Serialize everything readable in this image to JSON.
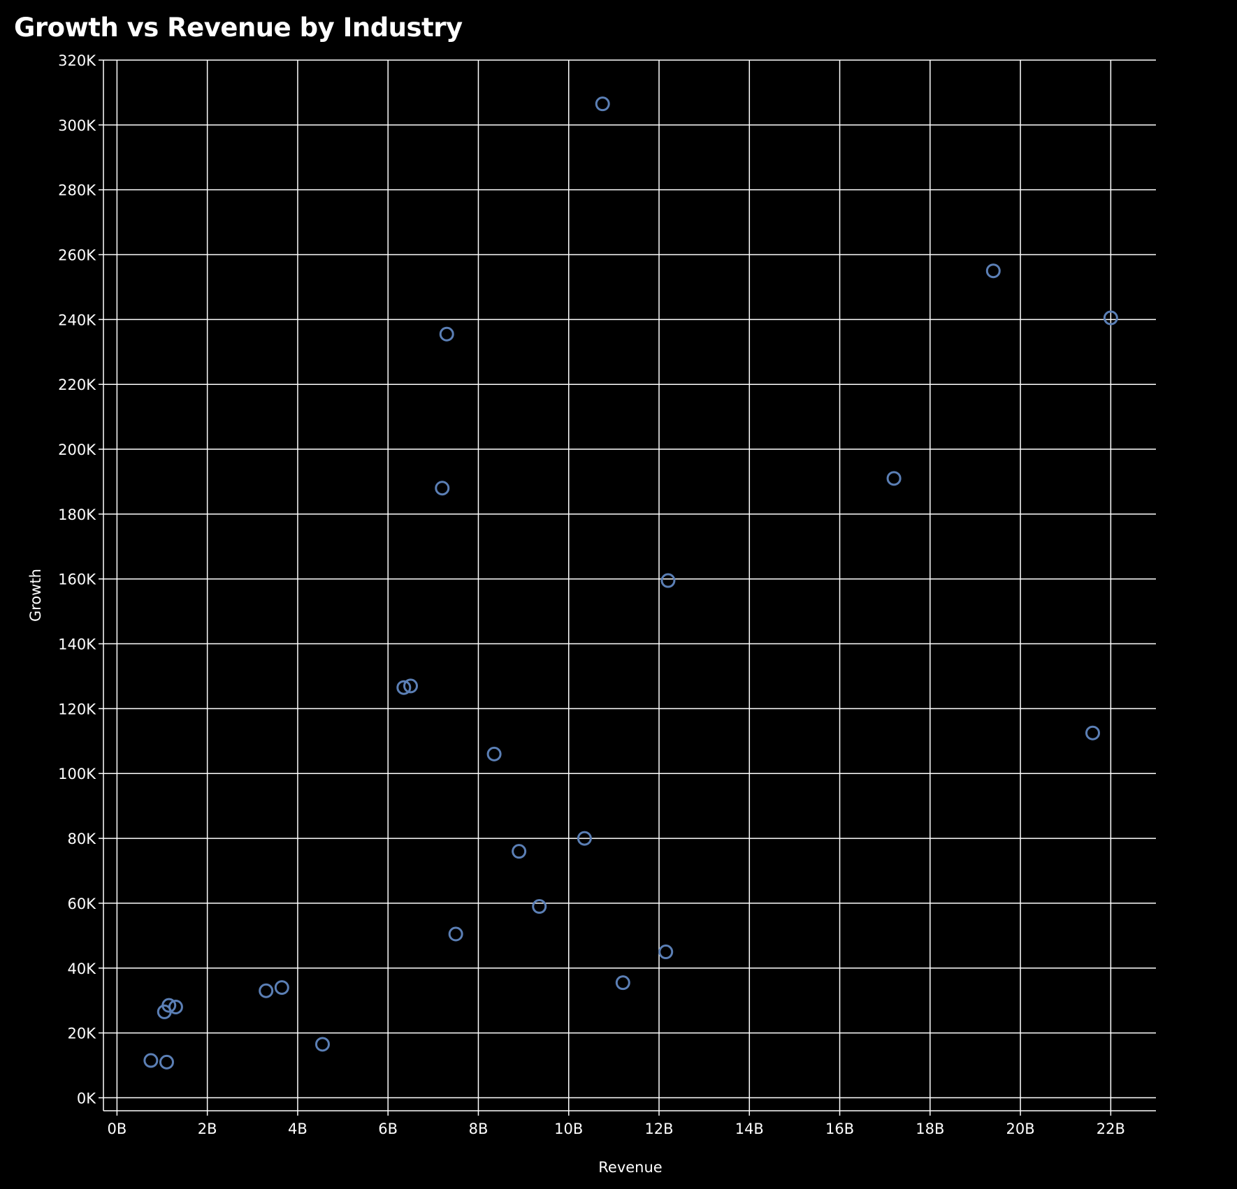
{
  "chart_data": {
    "type": "scatter",
    "title": "Growth vs Revenue by Industry",
    "xlabel": "Revenue",
    "ylabel": "Growth",
    "xlim": [
      -0.3,
      23
    ],
    "ylim": [
      -4,
      320
    ],
    "x_ticks": [
      0,
      2,
      4,
      6,
      8,
      10,
      12,
      14,
      16,
      18,
      20,
      22
    ],
    "x_tick_labels": [
      "0B",
      "2B",
      "4B",
      "6B",
      "8B",
      "10B",
      "12B",
      "14B",
      "16B",
      "18B",
      "20B",
      "22B"
    ],
    "y_ticks": [
      0,
      20,
      40,
      60,
      80,
      100,
      120,
      140,
      160,
      180,
      200,
      220,
      240,
      260,
      280,
      300,
      320
    ],
    "y_tick_labels": [
      "0K",
      "20K",
      "40K",
      "60K",
      "80K",
      "100K",
      "120K",
      "140K",
      "160K",
      "180K",
      "200K",
      "220K",
      "240K",
      "260K",
      "280K",
      "300K",
      "320K"
    ],
    "x_unit": "billions",
    "y_unit": "thousands",
    "grid": true,
    "marker": "hollow-circle",
    "colors": {
      "background": "#000000",
      "grid": "#ffffff",
      "marker": "#5b7fb5",
      "text": "#ffffff"
    },
    "points": [
      {
        "x": 10.75,
        "y": 306.5
      },
      {
        "x": 19.4,
        "y": 255
      },
      {
        "x": 22.0,
        "y": 240.5
      },
      {
        "x": 7.3,
        "y": 235.5
      },
      {
        "x": 7.2,
        "y": 188
      },
      {
        "x": 17.2,
        "y": 191
      },
      {
        "x": 12.2,
        "y": 159.5
      },
      {
        "x": 6.35,
        "y": 126.5
      },
      {
        "x": 6.5,
        "y": 127
      },
      {
        "x": 21.6,
        "y": 112.5
      },
      {
        "x": 8.35,
        "y": 106
      },
      {
        "x": 10.35,
        "y": 80
      },
      {
        "x": 8.9,
        "y": 76
      },
      {
        "x": 9.35,
        "y": 59
      },
      {
        "x": 7.5,
        "y": 50.5
      },
      {
        "x": 12.15,
        "y": 45
      },
      {
        "x": 11.2,
        "y": 35.5
      },
      {
        "x": 3.3,
        "y": 33
      },
      {
        "x": 3.65,
        "y": 34
      },
      {
        "x": 1.15,
        "y": 28.5
      },
      {
        "x": 1.3,
        "y": 28
      },
      {
        "x": 1.05,
        "y": 26.5
      },
      {
        "x": 4.55,
        "y": 16.5
      },
      {
        "x": 0.75,
        "y": 11.5
      },
      {
        "x": 1.1,
        "y": 11
      }
    ]
  }
}
